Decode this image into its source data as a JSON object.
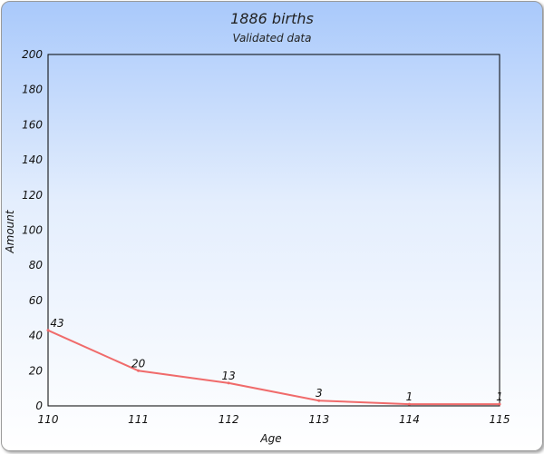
{
  "chart_data": {
    "type": "line",
    "title": "1886 births",
    "subtitle": "Validated data",
    "xlabel": "Age",
    "ylabel": "Amount",
    "x": [
      110,
      111,
      112,
      113,
      114,
      115
    ],
    "y_ticks": [
      0,
      20,
      40,
      60,
      80,
      100,
      120,
      140,
      160,
      180,
      200
    ],
    "ylim": [
      0,
      200
    ],
    "xlim": [
      110,
      115
    ],
    "series": [
      {
        "values": [
          43,
          20,
          13,
          3,
          1,
          1
        ],
        "color": "#f06b6b"
      }
    ],
    "data_labels": [
      "43",
      "20",
      "13",
      "3",
      "1",
      "1"
    ],
    "grid": false,
    "legend": "none"
  }
}
